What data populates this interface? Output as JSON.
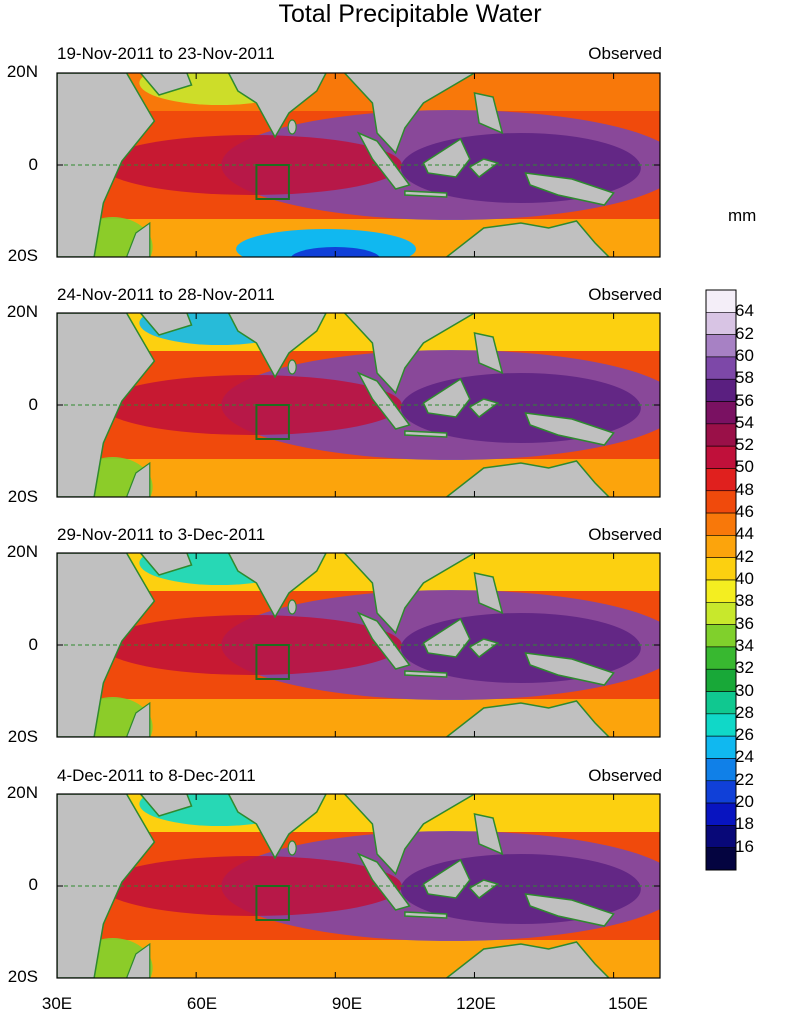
{
  "title": "Total Precipitable Water",
  "unit": "mm",
  "panels": [
    {
      "date_range": "19-Nov-2011 to 23-Nov-2011",
      "tag": "Observed"
    },
    {
      "date_range": "24-Nov-2011 to 28-Nov-2011",
      "tag": "Observed"
    },
    {
      "date_range": "29-Nov-2011 to 3-Dec-2011",
      "tag": "Observed"
    },
    {
      "date_range": "4-Dec-2011 to 8-Dec-2011",
      "tag": "Observed"
    }
  ],
  "lat_labels": [
    "20N",
    "0",
    "20S"
  ],
  "lon_labels": [
    "30E",
    "60E",
    "90E",
    "120E",
    "150E"
  ],
  "colorbar": {
    "labels": [
      "64",
      "62",
      "60",
      "58",
      "56",
      "54",
      "52",
      "50",
      "48",
      "46",
      "44",
      "42",
      "40",
      "38",
      "36",
      "34",
      "32",
      "30",
      "28",
      "26",
      "24",
      "22",
      "20",
      "18",
      "16"
    ],
    "colors": [
      "#f4eef8",
      "#d8c4e4",
      "#a781c4",
      "#7d48a8",
      "#5a1f80",
      "#7a1162",
      "#9a1048",
      "#c0103a",
      "#e0201e",
      "#f04a0c",
      "#f8780a",
      "#fca40c",
      "#fcd010",
      "#f4ee20",
      "#c8e82c",
      "#80d02c",
      "#38b830",
      "#18a838",
      "#10c890",
      "#10d8c8",
      "#10b8f0",
      "#1080e8",
      "#1040d8",
      "#0814c0",
      "#080878",
      "#040440"
    ]
  },
  "map_colors": {
    "land": "#c0c0c0",
    "coast": "#2e8a2e",
    "box": "#1e6e1e",
    "equator": "#2e8a2e"
  }
}
